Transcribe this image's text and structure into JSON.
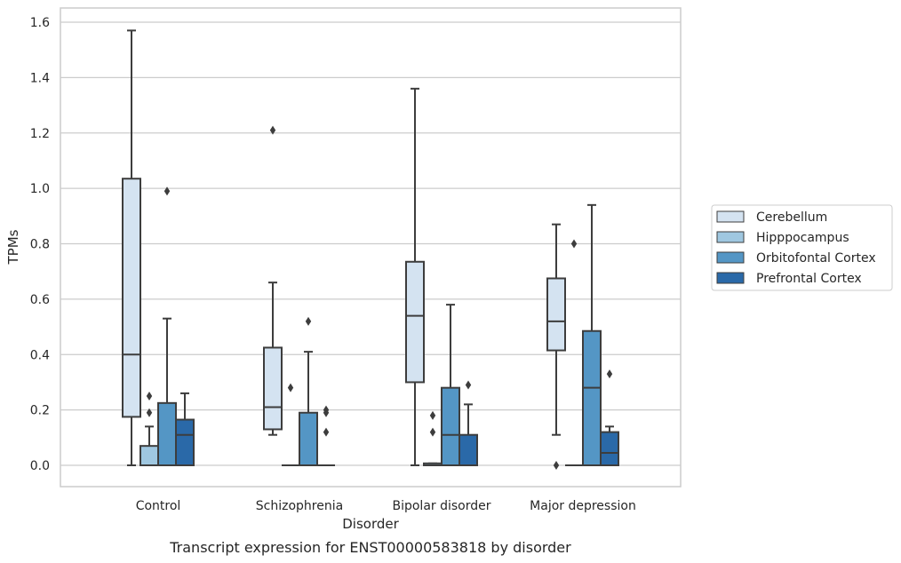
{
  "chart_data": {
    "type": "box",
    "caption": "Transcript expression for ENST00000583818 by disorder",
    "xlabel": "Disorder",
    "ylabel": "TPMs",
    "ylim": [
      -0.075,
      1.65
    ],
    "yticks": [
      0.0,
      0.2,
      0.4,
      0.6,
      0.8,
      1.0,
      1.2,
      1.4,
      1.6
    ],
    "ytick_labels": [
      "0.0",
      "0.2",
      "0.4",
      "0.6",
      "0.8",
      "1.0",
      "1.2",
      "1.4",
      "1.6"
    ],
    "grid": "horizontal",
    "legend_position": "right",
    "categories": [
      "Control",
      "Schizophrenia",
      "Bipolar disorder",
      "Major depression"
    ],
    "series": [
      {
        "name": "Cerebellum",
        "color": "#d4e3f1",
        "boxes": [
          {
            "whislo": 0.0,
            "q1": 0.175,
            "med": 0.4,
            "q3": 1.035,
            "whishi": 1.57,
            "fliers": []
          },
          {
            "whislo": 0.11,
            "q1": 0.13,
            "med": 0.21,
            "q3": 0.425,
            "whishi": 0.66,
            "fliers": [
              1.21
            ]
          },
          {
            "whislo": 0.0,
            "q1": 0.3,
            "med": 0.54,
            "q3": 0.735,
            "whishi": 1.36,
            "fliers": []
          },
          {
            "whislo": 0.11,
            "q1": 0.415,
            "med": 0.52,
            "q3": 0.675,
            "whishi": 0.87,
            "fliers": [
              0.0
            ]
          }
        ]
      },
      {
        "name": "Hipppocampus",
        "color": "#9fc7e0",
        "boxes": [
          {
            "whislo": 0.0,
            "q1": 0.0,
            "med": 0.0,
            "q3": 0.07,
            "whishi": 0.14,
            "fliers": [
              0.25,
              0.19
            ]
          },
          {
            "whislo": 0.0,
            "q1": 0.0,
            "med": 0.0,
            "q3": 0.0,
            "whishi": 0.0,
            "fliers": [
              0.28
            ]
          },
          {
            "whislo": 0.0,
            "q1": 0.0,
            "med": 0.0,
            "q3": 0.007,
            "whishi": 0.007,
            "fliers": [
              0.18,
              0.12
            ]
          },
          {
            "whislo": 0.0,
            "q1": 0.0,
            "med": 0.0,
            "q3": 0.0,
            "whishi": 0.0,
            "fliers": [
              0.8
            ]
          }
        ]
      },
      {
        "name": "Orbitofontal Cortex",
        "color": "#5496c5",
        "boxes": [
          {
            "whislo": 0.0,
            "q1": 0.0,
            "med": 0.0,
            "q3": 0.225,
            "whishi": 0.53,
            "fliers": [
              0.99
            ]
          },
          {
            "whislo": 0.0,
            "q1": 0.0,
            "med": 0.0,
            "q3": 0.19,
            "whishi": 0.41,
            "fliers": [
              0.52
            ]
          },
          {
            "whislo": 0.0,
            "q1": 0.0,
            "med": 0.11,
            "q3": 0.28,
            "whishi": 0.58,
            "fliers": []
          },
          {
            "whislo": 0.0,
            "q1": 0.0,
            "med": 0.28,
            "q3": 0.485,
            "whishi": 0.94,
            "fliers": []
          }
        ]
      },
      {
        "name": "Prefrontal Cortex",
        "color": "#2a69a8",
        "boxes": [
          {
            "whislo": 0.0,
            "q1": 0.0,
            "med": 0.11,
            "q3": 0.165,
            "whishi": 0.26,
            "fliers": []
          },
          {
            "whislo": 0.0,
            "q1": 0.0,
            "med": 0.0,
            "q3": 0.0,
            "whishi": 0.0,
            "fliers": [
              0.2,
              0.19,
              0.12
            ]
          },
          {
            "whislo": 0.0,
            "q1": 0.0,
            "med": 0.0,
            "q3": 0.11,
            "whishi": 0.22,
            "fliers": [
              0.29
            ]
          },
          {
            "whislo": 0.0,
            "q1": 0.0,
            "med": 0.045,
            "q3": 0.12,
            "whishi": 0.14,
            "fliers": [
              0.33
            ]
          }
        ]
      }
    ]
  }
}
